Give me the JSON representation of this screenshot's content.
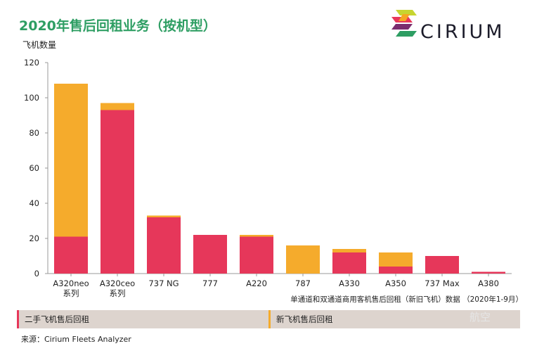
{
  "title": "2020年售后回租业务（按机型）",
  "logo": {
    "text": "CIRIUM",
    "colors": [
      "#e8385a",
      "#f5a623",
      "#2e9e63",
      "#7b2d6e",
      "#c7d530"
    ]
  },
  "chart_data": {
    "type": "bar",
    "stacked": true,
    "ylabel": "飞机数量",
    "ylim": [
      0,
      120
    ],
    "yticks": [
      0,
      20,
      40,
      60,
      80,
      100,
      120
    ],
    "grid": false,
    "categories": [
      [
        "A320neo",
        "系列"
      ],
      [
        "A320ceo",
        "系列"
      ],
      [
        "737 NG"
      ],
      [
        "777"
      ],
      [
        "A220"
      ],
      [
        "787"
      ],
      [
        "A330"
      ],
      [
        "A350"
      ],
      [
        "737 Max"
      ],
      [
        "A380"
      ]
    ],
    "series": [
      {
        "name": "二手飞机售后回租",
        "color": "#e6375a",
        "values": [
          21,
          93,
          32,
          22,
          21,
          0,
          12,
          4,
          10,
          1
        ]
      },
      {
        "name": "新飞机售后回租",
        "color": "#f5ab2c",
        "values": [
          87,
          4,
          1,
          0,
          1,
          16,
          2,
          8,
          0,
          0
        ]
      }
    ],
    "legend_position": "bottom",
    "annotation": "单通道和双通道商用客机售后回租（新旧飞机）数据 （2020年1-9月）"
  },
  "source": "来源：Cirium Fleets Analyzer",
  "watermark": "航空"
}
